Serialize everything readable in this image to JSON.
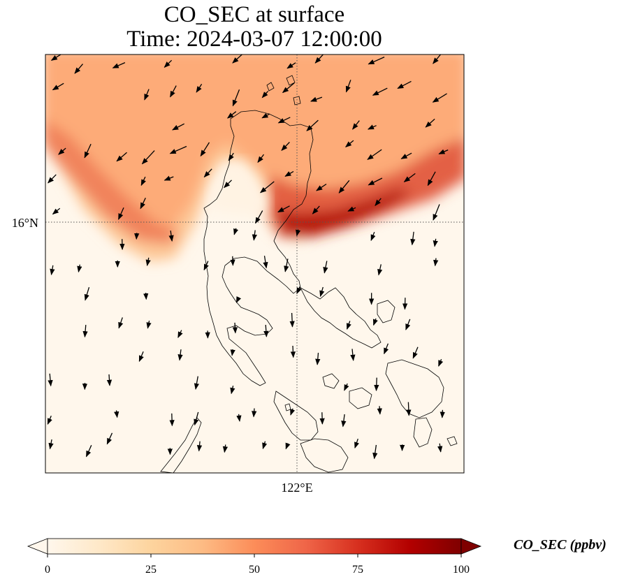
{
  "title": {
    "line1": "CO_SEC at surface",
    "line2": "Time: 2024-03-07 12:00:00"
  },
  "map": {
    "lat_label": "16°N",
    "lon_label": "122°E",
    "gridlines": "dotted",
    "coastlines": true,
    "wind_vectors": true
  },
  "colorbar": {
    "label": "CO_SEC (ppbv)",
    "colormap": "OrRd",
    "extend": "both",
    "ticks": [
      "0",
      "25",
      "50",
      "75",
      "100"
    ],
    "range": [
      0,
      100
    ],
    "colors": [
      "#fff7ec",
      "#fee8c8",
      "#fdd49e",
      "#fdbb84",
      "#fc8d59",
      "#ef6548",
      "#d7301f",
      "#b30000",
      "#7f0000"
    ]
  }
}
